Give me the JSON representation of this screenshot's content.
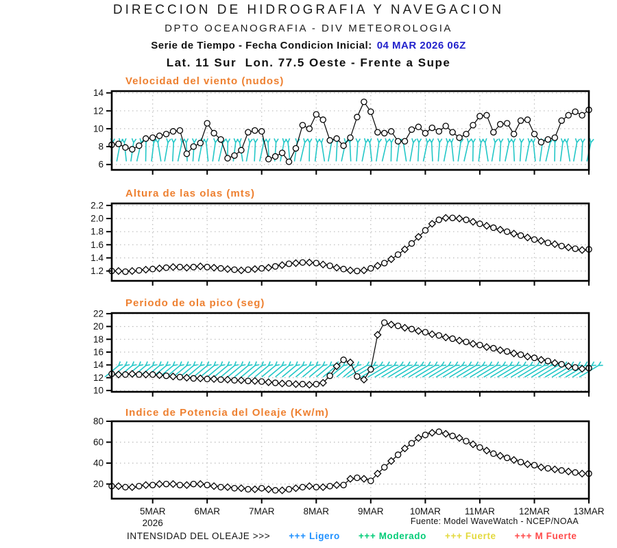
{
  "header": {
    "line1": "DIRECCION DE HIDROGRAFIA Y NAVEGACION",
    "line2": "DPTO OCEANOGRAFIA - DIV METEOROLOGIA",
    "series_label": "Serie de Tiempo - Fecha Condicion Inicial:",
    "series_value": "04 MAR 2026 06Z",
    "line4": "Lat. 11 Sur  Lon. 77.5 Oeste - Frente a Supe"
  },
  "colors": {
    "title_orange": "#EE8030",
    "date_blue": "#2222CC",
    "arrow_cyan": "#22C7C7",
    "grid_gray": "#BBBBBB",
    "axis_black": "#000000"
  },
  "time_axis": {
    "points": 71,
    "interval_hours": 3,
    "first_tick_day": 0.75,
    "days_total": 8.75,
    "tick_labels": [
      "5MAR",
      "6MAR",
      "7MAR",
      "8MAR",
      "9MAR",
      "10MAR",
      "11MAR",
      "12MAR",
      "13MAR"
    ],
    "year_label": "2026"
  },
  "chart_data": [
    {
      "type": "line",
      "title": "Velocidad del viento (nudos)",
      "ylim": [
        5.4,
        14.2
      ],
      "yticks": [
        6,
        8,
        10,
        12,
        14
      ],
      "ytick_labels": [
        "6",
        "8",
        "10",
        "12",
        "14"
      ],
      "grid": true,
      "marker_style": "circle",
      "arrows": {
        "meaning": "wind-direction",
        "style": "vertical",
        "v_base": 6.35,
        "v_tip": 8.45
      },
      "values": [
        8.2,
        8.3,
        7.9,
        7.7,
        8.1,
        8.9,
        9.0,
        9.2,
        9.4,
        9.7,
        9.8,
        7.2,
        8.0,
        8.4,
        10.6,
        9.5,
        8.8,
        6.7,
        7.0,
        7.6,
        9.6,
        9.8,
        9.7,
        6.6,
        6.9,
        7.3,
        6.3,
        7.8,
        10.4,
        10.0,
        11.6,
        11.0,
        8.7,
        8.9,
        8.1,
        9.0,
        11.3,
        13.0,
        11.9,
        9.6,
        9.5,
        9.7,
        8.6,
        8.6,
        9.9,
        10.2,
        9.5,
        10.1,
        9.7,
        10.3,
        9.6,
        9.0,
        9.4,
        10.4,
        11.4,
        11.5,
        9.6,
        10.5,
        10.6,
        9.4,
        10.9,
        11.0,
        9.4,
        8.5,
        8.8,
        9.0,
        10.9,
        11.5,
        11.9,
        11.5,
        12.1
      ]
    },
    {
      "type": "line",
      "title": "Altura de las olas (mts)",
      "ylim": [
        1.05,
        2.23
      ],
      "yticks": [
        1.2,
        1.4,
        1.6,
        1.8,
        2.0,
        2.2
      ],
      "ytick_labels": [
        "1.2",
        "1.4",
        "1.6",
        "1.8",
        "2.0",
        "2.2"
      ],
      "grid": true,
      "marker_style": "alternate",
      "arrows": null,
      "values": [
        1.2,
        1.2,
        1.19,
        1.2,
        1.21,
        1.22,
        1.23,
        1.24,
        1.25,
        1.26,
        1.26,
        1.25,
        1.26,
        1.27,
        1.26,
        1.25,
        1.24,
        1.23,
        1.22,
        1.21,
        1.22,
        1.23,
        1.24,
        1.25,
        1.27,
        1.29,
        1.31,
        1.32,
        1.33,
        1.33,
        1.32,
        1.3,
        1.28,
        1.25,
        1.23,
        1.21,
        1.2,
        1.21,
        1.24,
        1.28,
        1.32,
        1.38,
        1.45,
        1.53,
        1.62,
        1.72,
        1.82,
        1.92,
        1.98,
        2.01,
        2.01,
        2.0,
        1.98,
        1.95,
        1.92,
        1.89,
        1.86,
        1.83,
        1.8,
        1.77,
        1.74,
        1.71,
        1.68,
        1.66,
        1.63,
        1.61,
        1.58,
        1.56,
        1.54,
        1.52,
        1.53
      ]
    },
    {
      "type": "line",
      "title": "Periodo de ola pico (seg)",
      "ylim": [
        9.8,
        22.1
      ],
      "yticks": [
        10,
        12,
        14,
        16,
        18,
        20,
        22
      ],
      "ytick_labels": [
        "10",
        "12",
        "14",
        "16",
        "18",
        "20",
        "22"
      ],
      "grid": true,
      "marker_style": "alternate",
      "arrows": {
        "meaning": "wave-direction",
        "style": "diagonal",
        "v_center": 13.0
      },
      "values": [
        12.6,
        12.5,
        12.5,
        12.6,
        12.5,
        12.5,
        12.5,
        12.4,
        12.3,
        12.2,
        12.1,
        12.0,
        11.9,
        11.9,
        11.8,
        11.8,
        11.7,
        11.7,
        11.6,
        11.6,
        11.5,
        11.5,
        11.4,
        11.3,
        11.2,
        11.1,
        11.1,
        11.0,
        11.0,
        10.9,
        11.0,
        11.2,
        12.3,
        13.8,
        14.8,
        14.4,
        12.2,
        11.7,
        13.3,
        18.7,
        20.6,
        20.3,
        20.1,
        19.8,
        19.6,
        19.3,
        19.1,
        18.8,
        18.6,
        18.3,
        18.1,
        17.8,
        17.6,
        17.3,
        17.1,
        16.8,
        16.6,
        16.3,
        16.1,
        15.8,
        15.6,
        15.3,
        15.1,
        14.8,
        14.6,
        14.3,
        14.1,
        13.8,
        13.6,
        13.4,
        13.5
      ]
    },
    {
      "type": "line",
      "title": "Indice de Potencia del Oleaje (Kw/m)",
      "ylim": [
        6,
        80
      ],
      "yticks": [
        20,
        40,
        60,
        80
      ],
      "ytick_labels": [
        "20",
        "40",
        "60",
        "80"
      ],
      "grid": true,
      "marker_style": "alternate",
      "arrows": null,
      "values": [
        18,
        18,
        17,
        17,
        18,
        19,
        19,
        20,
        20,
        20,
        19,
        19,
        20,
        20,
        19,
        18,
        17,
        17,
        16,
        16,
        15,
        15,
        16,
        15,
        14,
        14,
        15,
        16,
        17,
        18,
        17,
        17,
        18,
        19,
        19,
        25,
        26,
        25,
        23,
        30,
        36,
        42,
        48,
        54,
        59,
        64,
        67,
        69,
        70,
        68,
        66,
        64,
        61,
        58,
        55,
        52,
        49,
        47,
        45,
        43,
        41,
        39,
        38,
        36,
        35,
        34,
        33,
        32,
        31,
        30,
        30
      ]
    }
  ],
  "footer": {
    "source": "Fuente: Model WaveWatch - NCEP/NOAA"
  },
  "legend": {
    "label": "INTENSIDAD DEL OLEAJE >>>",
    "items": [
      {
        "symbol": "+++",
        "label": "Ligero",
        "color": "#1E90FF"
      },
      {
        "symbol": "+++",
        "label": "Moderado",
        "color": "#00CC77"
      },
      {
        "symbol": "+++",
        "label": "Fuerte",
        "color": "#E3D93C"
      },
      {
        "symbol": "+++",
        "label": "M Fuerte",
        "color": "#FF4A4A"
      }
    ]
  }
}
